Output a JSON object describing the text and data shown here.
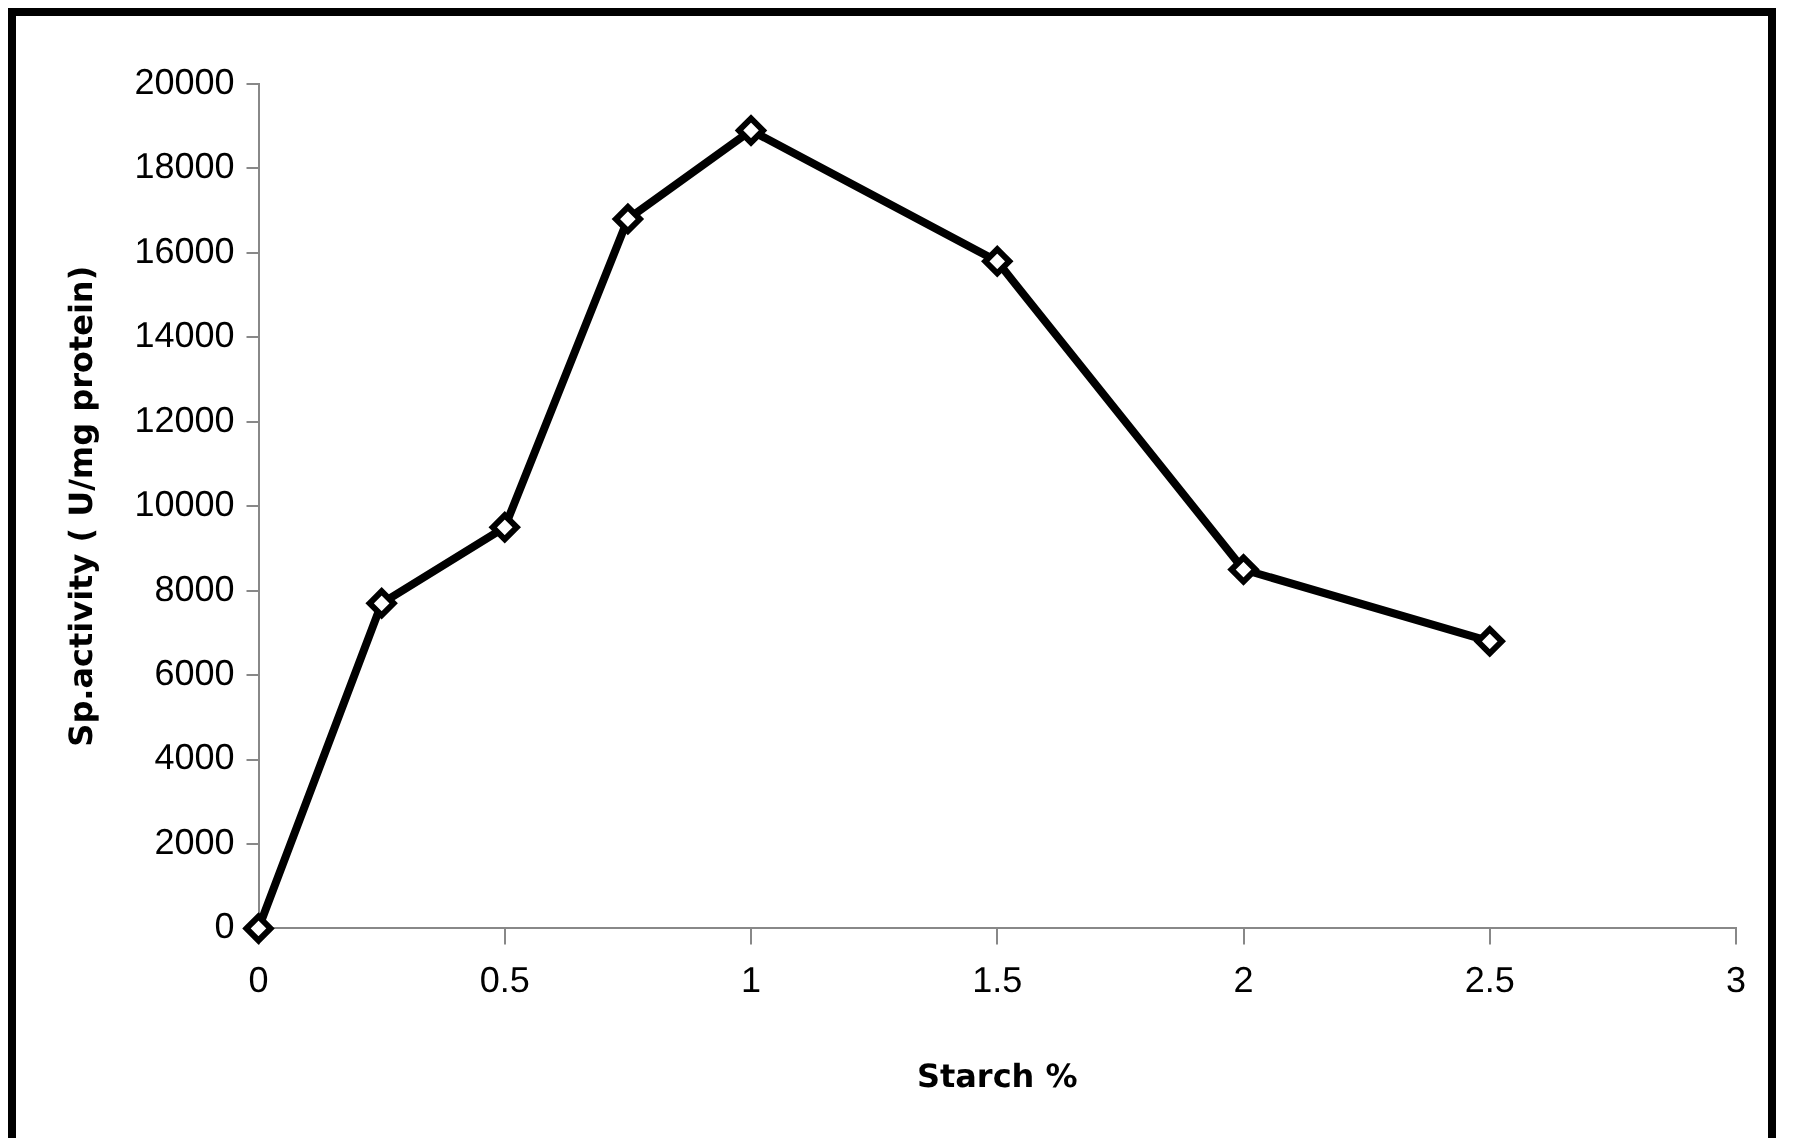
{
  "chart_data": {
    "type": "line",
    "xlabel": "Starch %",
    "ylabel": "Sp.activity ( U/mg protein)",
    "x": [
      0,
      0.25,
      0.5,
      0.75,
      1,
      1.5,
      2,
      2.5
    ],
    "series": [
      {
        "color": "#000000",
        "values": [
          0,
          7700,
          9500,
          16800,
          18900,
          15800,
          8500,
          6800
        ]
      }
    ],
    "xlim": [
      0,
      3
    ],
    "xticks": [
      0,
      0.5,
      1,
      1.5,
      2,
      2.5,
      3
    ],
    "ylim": [
      0,
      20000
    ],
    "yticks": [
      0,
      2000,
      4000,
      6000,
      8000,
      10000,
      12000,
      14000,
      16000,
      18000,
      20000
    ],
    "grid": false,
    "legend": false,
    "marker": "diamond",
    "line_style": "solid"
  }
}
